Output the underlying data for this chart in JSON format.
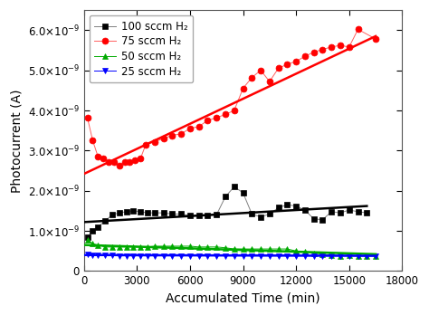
{
  "title": "",
  "xlabel": "Accumulated Time (min)",
  "ylabel": "Photocurrent (A)",
  "xlim": [
    0,
    18000
  ],
  "ylim": [
    0,
    6.5e-09
  ],
  "ytick_values": [
    0,
    1e-09,
    2e-09,
    3e-09,
    4e-09,
    5e-09,
    6e-09
  ],
  "ytick_labels": [
    "0",
    "1.0×10⁻⁹",
    "2.0×10⁻⁹",
    "3.0×10⁻⁹",
    "4.0×10⁻⁹",
    "5.0×10⁻⁹",
    "6.0×10⁻⁹"
  ],
  "xticks": [
    0,
    3000,
    6000,
    9000,
    12000,
    15000,
    18000
  ],
  "background_color": "#ffffff",
  "series_100": {
    "label": "100 sccm H₂",
    "color": "#808080",
    "marker": "s",
    "markersize": 4,
    "linestyle": "-",
    "linewidth": 0.7,
    "markerfacecolor": "#000000",
    "markeredgecolor": "#000000",
    "x": [
      200,
      500,
      800,
      1200,
      1600,
      2000,
      2400,
      2800,
      3200,
      3600,
      4000,
      4500,
      5000,
      5500,
      6000,
      6500,
      7000,
      7500,
      8000,
      8500,
      9000,
      9500,
      10000,
      10500,
      11000,
      11500,
      12000,
      12500,
      13000,
      13500,
      14000,
      14500,
      15000,
      15500,
      16000
    ],
    "y": [
      8.5e-10,
      1e-09,
      1.1e-09,
      1.25e-09,
      1.4e-09,
      1.45e-09,
      1.48e-09,
      1.5e-09,
      1.48e-09,
      1.45e-09,
      1.45e-09,
      1.45e-09,
      1.42e-09,
      1.42e-09,
      1.38e-09,
      1.38e-09,
      1.38e-09,
      1.4e-09,
      1.85e-09,
      2.1e-09,
      1.95e-09,
      1.42e-09,
      1.35e-09,
      1.42e-09,
      1.58e-09,
      1.65e-09,
      1.62e-09,
      1.52e-09,
      1.3e-09,
      1.28e-09,
      1.48e-09,
      1.45e-09,
      1.52e-09,
      1.48e-09,
      1.45e-09
    ],
    "fit_x": [
      0,
      16000
    ],
    "fit_y": [
      1.22e-09,
      1.62e-09
    ],
    "fit_color": "#000000",
    "fit_linewidth": 1.8
  },
  "series_75": {
    "label": "75 sccm H₂",
    "color": "#ff6060",
    "marker": "o",
    "markersize": 5,
    "linestyle": "-",
    "linewidth": 0.7,
    "markerfacecolor": "#ff0000",
    "markeredgecolor": "#ff0000",
    "x": [
      200,
      500,
      800,
      1100,
      1400,
      1700,
      2000,
      2300,
      2600,
      2900,
      3200,
      3500,
      4000,
      4500,
      5000,
      5500,
      6000,
      6500,
      7000,
      7500,
      8000,
      8500,
      9000,
      9500,
      10000,
      10500,
      11000,
      11500,
      12000,
      12500,
      13000,
      13500,
      14000,
      14500,
      15000,
      15500,
      16500
    ],
    "y": [
      3.82e-09,
      3.25e-09,
      2.85e-09,
      2.8e-09,
      2.72e-09,
      2.72e-09,
      2.62e-09,
      2.72e-09,
      2.72e-09,
      2.75e-09,
      2.8e-09,
      3.15e-09,
      3.22e-09,
      3.3e-09,
      3.38e-09,
      3.42e-09,
      3.55e-09,
      3.6e-09,
      3.75e-09,
      3.82e-09,
      3.9e-09,
      4e-09,
      4.55e-09,
      4.82e-09,
      5e-09,
      4.72e-09,
      5.05e-09,
      5.15e-09,
      5.22e-09,
      5.35e-09,
      5.45e-09,
      5.52e-09,
      5.58e-09,
      5.62e-09,
      5.58e-09,
      6.02e-09,
      5.78e-09
    ],
    "fit_x": [
      0,
      16500
    ],
    "fit_y": [
      2.42e-09,
      5.85e-09
    ],
    "fit_color": "#ff0000",
    "fit_linewidth": 1.8
  },
  "series_50": {
    "label": "50 sccm H₂",
    "color": "#00aa00",
    "marker": "^",
    "markersize": 5,
    "linestyle": "-",
    "linewidth": 0.7,
    "markerfacecolor": "#00aa00",
    "markeredgecolor": "#00aa00",
    "x": [
      200,
      500,
      800,
      1200,
      1600,
      2000,
      2400,
      2800,
      3200,
      3600,
      4000,
      4500,
      5000,
      5500,
      6000,
      6500,
      7000,
      7500,
      8000,
      8500,
      9000,
      9500,
      10000,
      10500,
      11000,
      11500,
      12000,
      12500,
      13000,
      13500,
      14000,
      14500,
      15000,
      15500,
      16000,
      16500
    ],
    "y": [
      7.8e-10,
      6.8e-10,
      6.5e-10,
      6e-10,
      6e-10,
      6e-10,
      6e-10,
      6e-10,
      6e-10,
      6e-10,
      6.2e-10,
      6.2e-10,
      6.2e-10,
      6.2e-10,
      6.2e-10,
      6e-10,
      6e-10,
      6e-10,
      5.8e-10,
      5.5e-10,
      5.5e-10,
      5.5e-10,
      5.5e-10,
      5.5e-10,
      5.5e-10,
      5.5e-10,
      5e-10,
      4.8e-10,
      4.5e-10,
      4.2e-10,
      4e-10,
      3.8e-10,
      4e-10,
      3.8e-10,
      3.8e-10,
      3.8e-10
    ],
    "fit_x": [
      0,
      16500
    ],
    "fit_y": [
      6.5e-10,
      4.2e-10
    ],
    "fit_color": "#00aa00",
    "fit_linewidth": 1.8
  },
  "series_25": {
    "label": "25 sccm H₂",
    "color": "#0000ff",
    "marker": "v",
    "markersize": 5,
    "linestyle": "-",
    "linewidth": 0.7,
    "markerfacecolor": "#0000ff",
    "markeredgecolor": "#0000ff",
    "x": [
      200,
      500,
      800,
      1200,
      1600,
      2000,
      2400,
      2800,
      3200,
      3600,
      4000,
      4500,
      5000,
      5500,
      6000,
      6500,
      7000,
      7500,
      8000,
      8500,
      9000,
      9500,
      10000,
      10500,
      11000,
      11500,
      12000,
      12500,
      13000,
      13500,
      14000,
      14500,
      15000,
      15500,
      16000,
      16500
    ],
    "y": [
      4.2e-10,
      4e-10,
      4e-10,
      4e-10,
      4e-10,
      3.8e-10,
      3.8e-10,
      3.8e-10,
      3.8e-10,
      3.8e-10,
      3.8e-10,
      3.8e-10,
      3.8e-10,
      3.8e-10,
      3.8e-10,
      3.8e-10,
      3.8e-10,
      3.8e-10,
      3.8e-10,
      3.8e-10,
      3.8e-10,
      3.8e-10,
      3.8e-10,
      3.8e-10,
      3.8e-10,
      3.8e-10,
      3.8e-10,
      3.8e-10,
      3.8e-10,
      3.8e-10,
      3.8e-10,
      3.8e-10,
      3.8e-10,
      3.8e-10,
      3.8e-10,
      3.8e-10
    ],
    "fit_x": [
      0,
      16500
    ],
    "fit_y": [
      4e-10,
      3.8e-10
    ],
    "fit_color": "#0000ff",
    "fit_linewidth": 1.8
  },
  "legend_loc": "upper left",
  "legend_fontsize": 8.5,
  "axis_fontsize": 10,
  "tick_fontsize": 8.5
}
